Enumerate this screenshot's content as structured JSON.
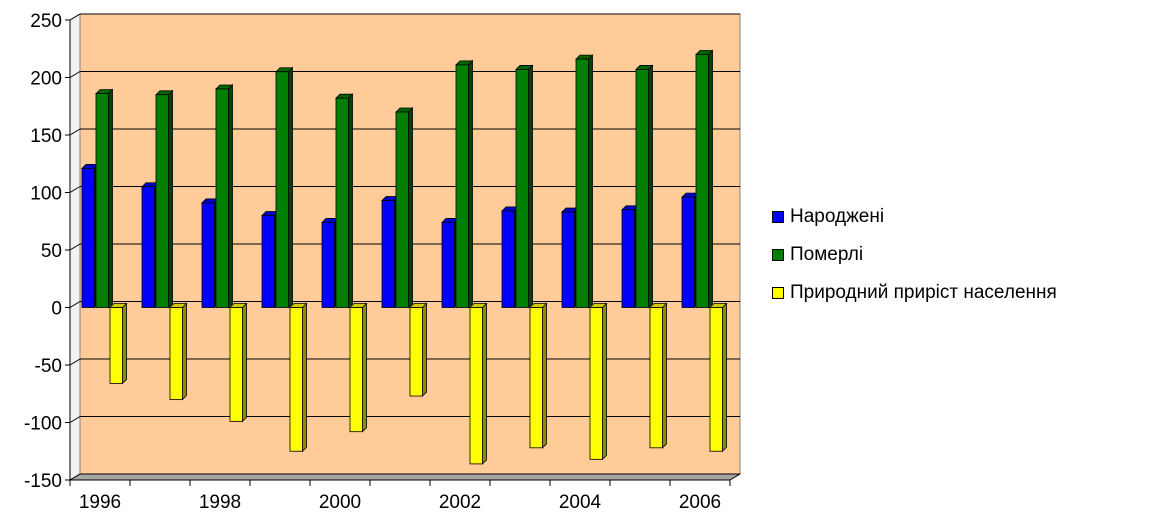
{
  "chart_data": {
    "type": "bar",
    "title": "",
    "xlabel": "",
    "ylabel": "",
    "ylim": [
      -150,
      250
    ],
    "yticks": [
      "250",
      "200",
      "150",
      "100",
      "50",
      "0",
      "-50",
      "-100",
      "-150"
    ],
    "categories": [
      "1996",
      "1997",
      "1998",
      "1999",
      "2000",
      "2001",
      "2002",
      "2003",
      "2004",
      "2005",
      "2006"
    ],
    "x_tick_labels": [
      "1996",
      "",
      "1998",
      "",
      "2000",
      "",
      "2002",
      "",
      "2004",
      "",
      "2006"
    ],
    "series": [
      {
        "name": "Народжені",
        "color": "#0000ff",
        "values": [
          121,
          105,
          91,
          80,
          74,
          93,
          74,
          84,
          83,
          85,
          96
        ]
      },
      {
        "name": "Померлі",
        "color": "#007f00",
        "values": [
          186,
          185,
          190,
          205,
          182,
          170,
          211,
          207,
          216,
          207,
          220
        ]
      },
      {
        "name": "Природний приріст населення",
        "color": "#ffff00",
        "values": [
          -66,
          -80,
          -99,
          -125,
          -108,
          -77,
          -136,
          -122,
          -132,
          -122,
          -125
        ]
      }
    ],
    "grid": true,
    "plot_background": "#ffcc99",
    "legend_position": "right"
  }
}
